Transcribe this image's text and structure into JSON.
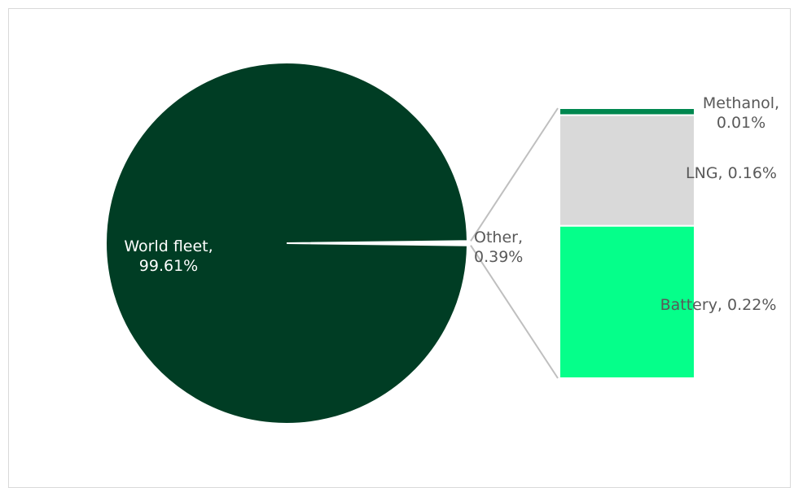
{
  "chart_data": {
    "type": "pie",
    "title": "",
    "slices": [
      {
        "label": "World fleet",
        "value": 99.61,
        "display": "World fleet,|99.61%",
        "color": "#003d24"
      },
      {
        "label": "Other",
        "value": 0.39,
        "display": "Other,|0.39%",
        "color": "#ffffff"
      }
    ],
    "breakdown": {
      "of": "Other",
      "type": "stacked-bar",
      "items": [
        {
          "label": "Methanol",
          "value": 0.01,
          "display": "Methanol,|0.01%",
          "color": "#00874f"
        },
        {
          "label": "LNG",
          "value": 0.16,
          "display": "LNG, 0.16%",
          "color": "#d9d9d9"
        },
        {
          "label": "Battery",
          "value": 0.22,
          "display": "Battery, 0.22%",
          "color": "#05ff8a"
        }
      ]
    },
    "label_colors": {
      "inside_dark": "#ffffff",
      "outside": "#595959"
    },
    "connector_color": "#bfbfbf"
  }
}
